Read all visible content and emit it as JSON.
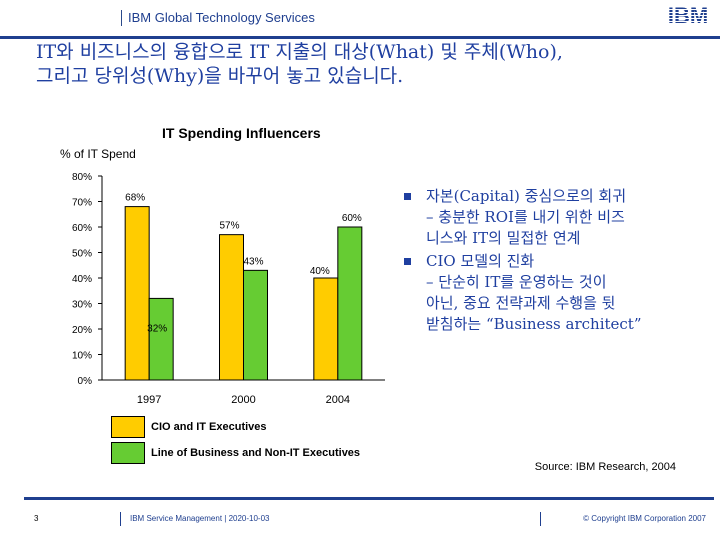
{
  "header": {
    "title": "IBM Global Technology Services",
    "logo_text": "IBM"
  },
  "slide": {
    "title": "IT와 비즈니스의 융합으로 IT 지출의 대상(What) 및 주체(Who),\n그리고 당위성(Why)을 바꾸어 놓고 있습니다."
  },
  "chart_data": {
    "type": "bar",
    "title": "IT Spending Influencers",
    "ylabel": "% of IT Spend",
    "xlabel": "",
    "ylim": [
      0,
      80
    ],
    "yticks": [
      "0%",
      "10%",
      "20%",
      "30%",
      "40%",
      "50%",
      "60%",
      "70%",
      "80%"
    ],
    "categories": [
      "1997",
      "2000",
      "2004"
    ],
    "series": [
      {
        "name": "CIO and IT Executives",
        "color": "#ffcc00",
        "values": [
          68,
          57,
          40
        ],
        "labels": [
          "68%",
          "57%",
          "40%"
        ]
      },
      {
        "name": "Line of Business and Non-IT Executives",
        "color": "#66cc33",
        "values": [
          32,
          43,
          60
        ],
        "labels": [
          "32%",
          "43%",
          "60%"
        ]
      }
    ],
    "legend": "bottom",
    "grid": false
  },
  "bullets": [
    {
      "main": "자본(Capital) 중심으로의 회귀",
      "sub": "– 충분한 ROI를 내기 위한 비즈\n니스와 IT의 밀접한 연계"
    },
    {
      "main": "CIO 모델의 진화",
      "sub": "– 단순히 IT를 운영하는 것이\n아닌, 중요 전략과제 수행을 뒷\n받침하는 “Business architect”"
    }
  ],
  "source": "Source: IBM Research, 2004",
  "footer": {
    "page": "3",
    "left": "IBM Service Management  |  2020-10-03",
    "right": "© Copyright IBM Corporation 2007"
  }
}
